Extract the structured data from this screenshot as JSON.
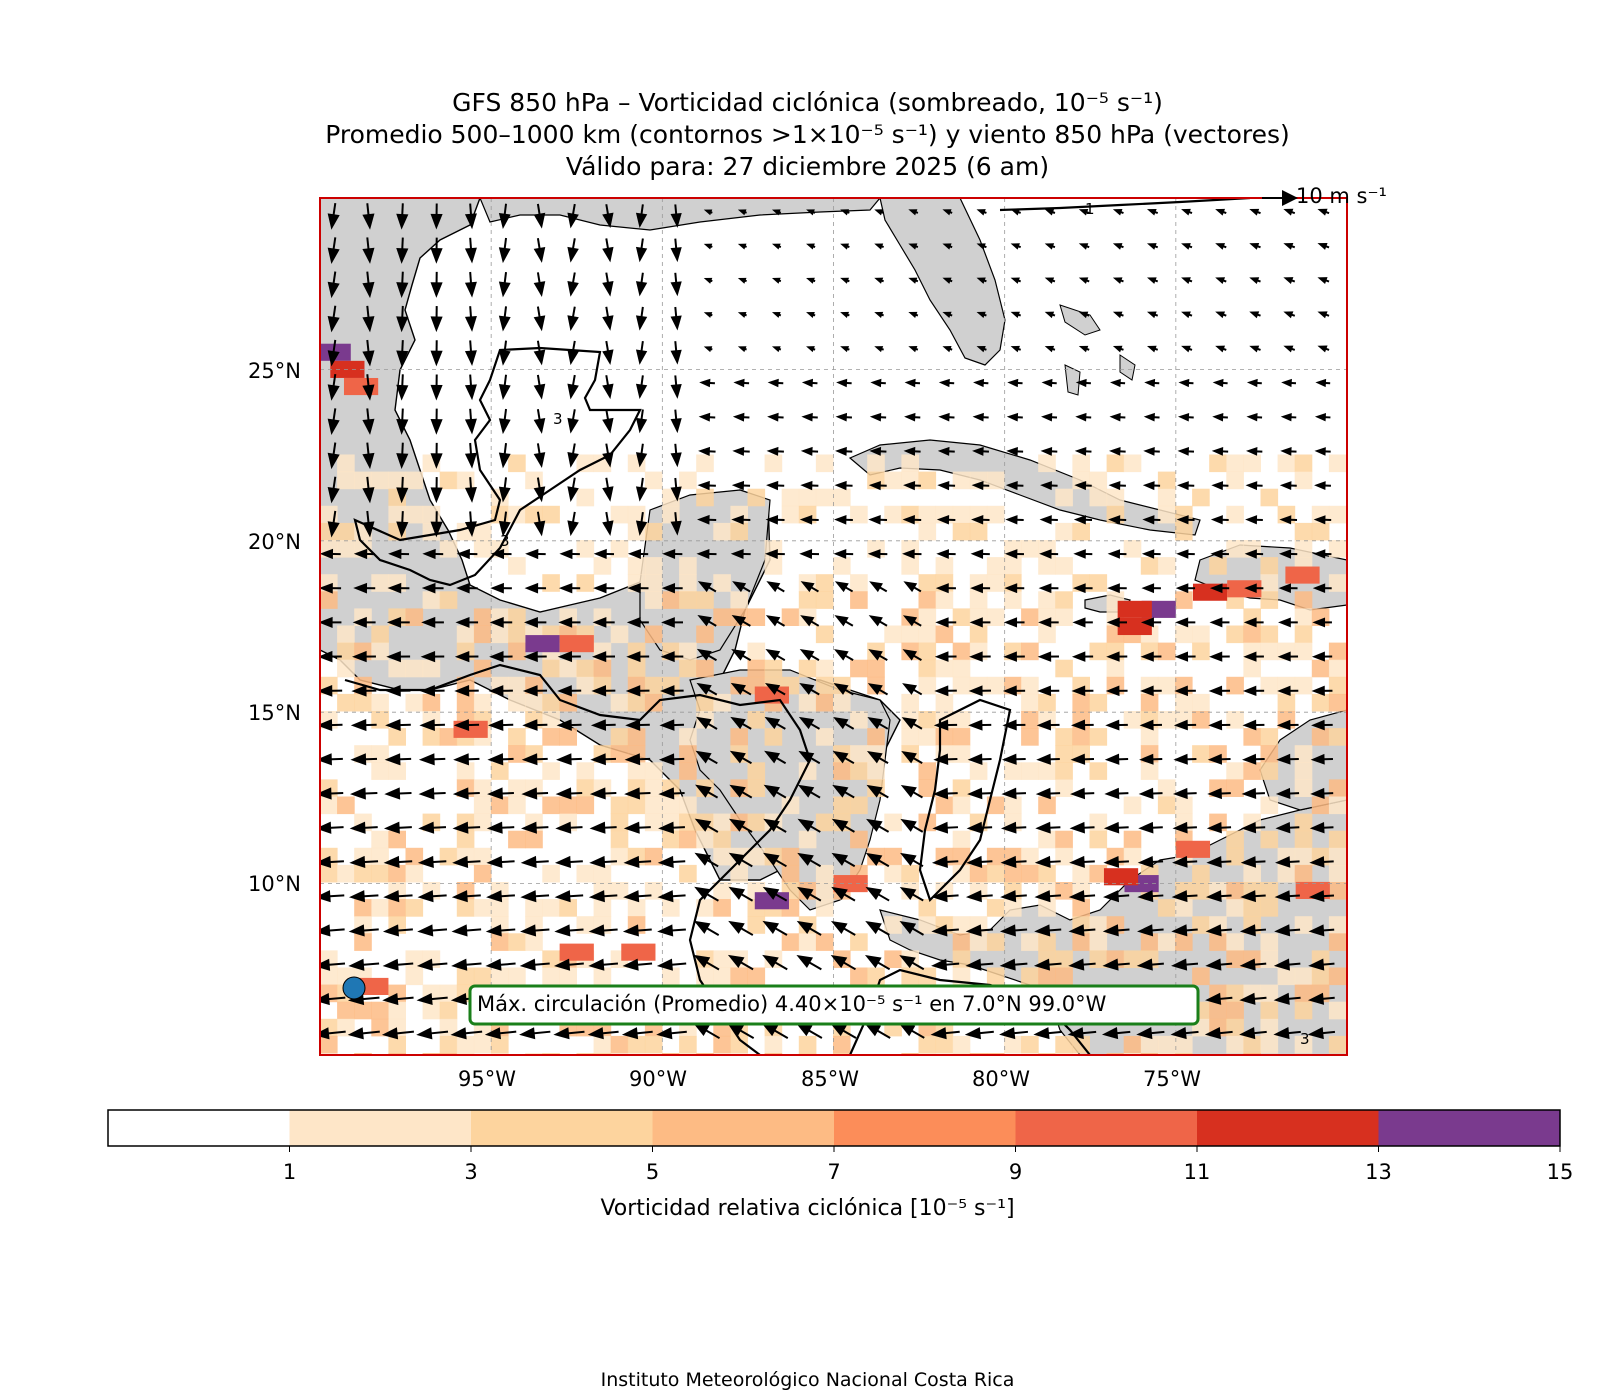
{
  "title": {
    "line1": "GFS 850 hPa – Vorticidad ciclónica (sombreado, 10⁻⁵ s⁻¹)",
    "line2": "Promedio 500–1000 km (contornos >1×10⁻⁵ s⁻¹) y viento 850 hPa (vectores)",
    "line3": "Válido para: 27 diciembre 2025 (6 am)"
  },
  "map": {
    "extent_lon": [
      -100,
      -70
    ],
    "extent_lat": [
      5,
      30
    ],
    "lat_ticks": [
      "25°N",
      "20°N",
      "15°N",
      "10°N"
    ],
    "lon_ticks": [
      "95°W",
      "90°W",
      "85°W",
      "80°W",
      "75°W"
    ],
    "land_color": "#d0d0d0",
    "frame_color": "#cc0000",
    "wind_key": "10 m s⁻¹",
    "contour_labels": [
      "1",
      "3",
      "3",
      "3"
    ],
    "max_marker_color": "#1f77b4"
  },
  "annotation": {
    "text": "Máx. circulación (Promedio) 4.40×10⁻⁵ s⁻¹ en 7.0°N 99.0°W",
    "border_color": "#1a7f1a",
    "max_value": 4.4,
    "max_lat": 7.0,
    "max_lon": -99.0
  },
  "colorbar": {
    "label": "Vorticidad relativa ciclónica [10⁻⁵ s⁻¹]",
    "ticks": [
      "1",
      "3",
      "5",
      "7",
      "9",
      "11",
      "13",
      "15"
    ],
    "bounds": [
      0,
      1,
      3,
      5,
      7,
      9,
      11,
      13,
      15
    ],
    "colors": [
      "#ffffff",
      "#fee6c8",
      "#fdd49e",
      "#fdbb84",
      "#fc8d59",
      "#ef6548",
      "#d7301f",
      "#7a3a8e"
    ]
  },
  "vorticity_patches": [
    {
      "lat": 25.5,
      "lon": -99.6,
      "v": 14
    },
    {
      "lat": 25.0,
      "lon": -99.2,
      "v": 12
    },
    {
      "lat": 24.5,
      "lon": -98.8,
      "v": 10
    },
    {
      "lat": 17.0,
      "lon": -93.5,
      "v": 14
    },
    {
      "lat": 17.0,
      "lon": -92.5,
      "v": 9
    },
    {
      "lat": 15.5,
      "lon": -86.8,
      "v": 9
    },
    {
      "lat": 14.5,
      "lon": -95.6,
      "v": 10
    },
    {
      "lat": 9.5,
      "lon": -86.8,
      "v": 14
    },
    {
      "lat": 10.0,
      "lon": -84.5,
      "v": 9
    },
    {
      "lat": 10.0,
      "lon": -76.0,
      "v": 14
    },
    {
      "lat": 10.2,
      "lon": -76.6,
      "v": 11
    },
    {
      "lat": 18.0,
      "lon": -75.5,
      "v": 14
    },
    {
      "lat": 18.0,
      "lon": -76.2,
      "v": 12
    },
    {
      "lat": 17.5,
      "lon": -76.2,
      "v": 11
    },
    {
      "lat": 19.0,
      "lon": -71.3,
      "v": 10
    },
    {
      "lat": 18.6,
      "lon": -73.0,
      "v": 9
    },
    {
      "lat": 9.8,
      "lon": -71.0,
      "v": 10
    },
    {
      "lat": 8.0,
      "lon": -90.7,
      "v": 9
    },
    {
      "lat": 8.0,
      "lon": -92.5,
      "v": 9
    },
    {
      "lat": 7.0,
      "lon": -98.5,
      "v": 9
    },
    {
      "lat": 11.0,
      "lon": -74.5,
      "v": 9
    },
    {
      "lat": 18.5,
      "lon": -74.0,
      "v": 11
    }
  ]
}
